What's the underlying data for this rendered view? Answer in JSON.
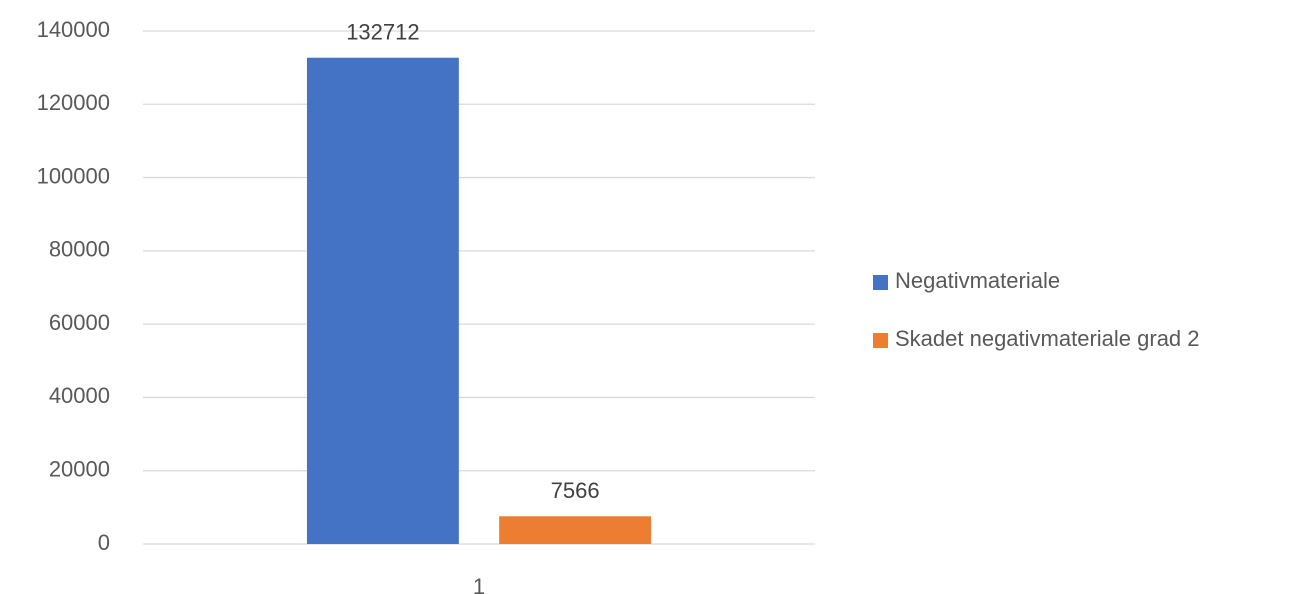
{
  "chart_data": {
    "type": "bar",
    "categories": [
      "1"
    ],
    "series": [
      {
        "name": "Negativmateriale",
        "color": "#4472c4",
        "values": [
          132712
        ]
      },
      {
        "name": "Skadet negativmateriale grad 2",
        "color": "#ed7d31",
        "values": [
          7566
        ]
      }
    ],
    "ylim": [
      0,
      140000
    ],
    "yticks": [
      0,
      20000,
      40000,
      60000,
      80000,
      100000,
      120000,
      140000
    ],
    "grid": true,
    "legend": "right",
    "data_labels": true
  }
}
